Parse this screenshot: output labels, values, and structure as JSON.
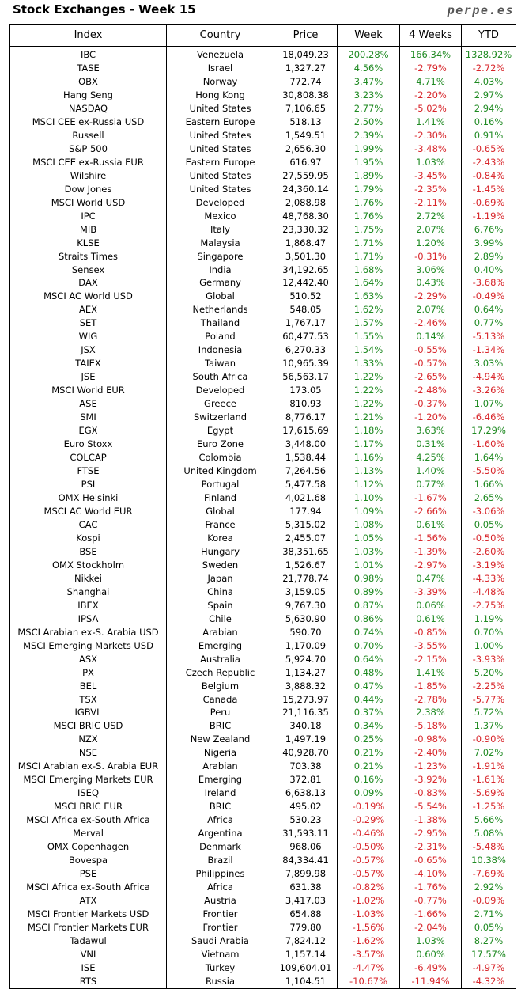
{
  "title": "Stock Exchanges - Week 15",
  "brand": "perpe.es",
  "colors": {
    "positive": "#1f8a22",
    "negative": "#d8262b"
  },
  "headers": [
    "Index",
    "Country",
    "Price",
    "Week",
    "4 Weeks",
    "YTD"
  ],
  "rows": [
    [
      "IBC",
      "Venezuela",
      "18,049.23",
      "200.28%",
      "166.34%",
      "1328.92%"
    ],
    [
      "TASE",
      "Israel",
      "1,327.27",
      "4.56%",
      "-2.79%",
      "-2.72%"
    ],
    [
      "OBX",
      "Norway",
      "772.74",
      "3.47%",
      "4.71%",
      "4.03%"
    ],
    [
      "Hang Seng",
      "Hong Kong",
      "30,808.38",
      "3.23%",
      "-2.20%",
      "2.97%"
    ],
    [
      "NASDAQ",
      "United States",
      "7,106.65",
      "2.77%",
      "-5.02%",
      "2.94%"
    ],
    [
      "MSCI CEE ex-Russia USD",
      "Eastern Europe",
      "518.13",
      "2.50%",
      "1.41%",
      "0.16%"
    ],
    [
      "Russell",
      "United States",
      "1,549.51",
      "2.39%",
      "-2.30%",
      "0.91%"
    ],
    [
      "S&P 500",
      "United States",
      "2,656.30",
      "1.99%",
      "-3.48%",
      "-0.65%"
    ],
    [
      "MSCI CEE ex-Russia EUR",
      "Eastern Europe",
      "616.97",
      "1.95%",
      "1.03%",
      "-2.43%"
    ],
    [
      "Wilshire",
      "United States",
      "27,559.95",
      "1.89%",
      "-3.45%",
      "-0.84%"
    ],
    [
      "Dow Jones",
      "United States",
      "24,360.14",
      "1.79%",
      "-2.35%",
      "-1.45%"
    ],
    [
      "MSCI World USD",
      "Developed",
      "2,088.98",
      "1.76%",
      "-2.11%",
      "-0.69%"
    ],
    [
      "IPC",
      "Mexico",
      "48,768.30",
      "1.76%",
      "2.72%",
      "-1.19%"
    ],
    [
      "MIB",
      "Italy",
      "23,330.32",
      "1.75%",
      "2.07%",
      "6.76%"
    ],
    [
      "KLSE",
      "Malaysia",
      "1,868.47",
      "1.71%",
      "1.20%",
      "3.99%"
    ],
    [
      "Straits Times",
      "Singapore",
      "3,501.30",
      "1.71%",
      "-0.31%",
      "2.89%"
    ],
    [
      "Sensex",
      "India",
      "34,192.65",
      "1.68%",
      "3.06%",
      "0.40%"
    ],
    [
      "DAX",
      "Germany",
      "12,442.40",
      "1.64%",
      "0.43%",
      "-3.68%"
    ],
    [
      "MSCI AC World USD",
      "Global",
      "510.52",
      "1.63%",
      "-2.29%",
      "-0.49%"
    ],
    [
      "AEX",
      "Netherlands",
      "548.05",
      "1.62%",
      "2.07%",
      "0.64%"
    ],
    [
      "SET",
      "Thailand",
      "1,767.17",
      "1.57%",
      "-2.46%",
      "0.77%"
    ],
    [
      "WIG",
      "Poland",
      "60,477.53",
      "1.55%",
      "0.14%",
      "-5.13%"
    ],
    [
      "JSX",
      "Indonesia",
      "6,270.33",
      "1.54%",
      "-0.55%",
      "-1.34%"
    ],
    [
      "TAIEX",
      "Taiwan",
      "10,965.39",
      "1.33%",
      "-0.57%",
      "3.03%"
    ],
    [
      "JSE",
      "South Africa",
      "56,563.17",
      "1.22%",
      "-2.65%",
      "-4.94%"
    ],
    [
      "MSCI World EUR",
      "Developed",
      "173.05",
      "1.22%",
      "-2.48%",
      "-3.26%"
    ],
    [
      "ASE",
      "Greece",
      "810.93",
      "1.22%",
      "-0.37%",
      "1.07%"
    ],
    [
      "SMI",
      "Switzerland",
      "8,776.17",
      "1.21%",
      "-1.20%",
      "-6.46%"
    ],
    [
      "EGX",
      "Egypt",
      "17,615.69",
      "1.18%",
      "3.63%",
      "17.29%"
    ],
    [
      "Euro Stoxx",
      "Euro Zone",
      "3,448.00",
      "1.17%",
      "0.31%",
      "-1.60%"
    ],
    [
      "COLCAP",
      "Colombia",
      "1,538.44",
      "1.16%",
      "4.25%",
      "1.64%"
    ],
    [
      "FTSE",
      "United Kingdom",
      "7,264.56",
      "1.13%",
      "1.40%",
      "-5.50%"
    ],
    [
      "PSI",
      "Portugal",
      "5,477.58",
      "1.12%",
      "0.77%",
      "1.66%"
    ],
    [
      "OMX Helsinki",
      "Finland",
      "4,021.68",
      "1.10%",
      "-1.67%",
      "2.65%"
    ],
    [
      "MSCI AC World EUR",
      "Global",
      "177.94",
      "1.09%",
      "-2.66%",
      "-3.06%"
    ],
    [
      "CAC",
      "France",
      "5,315.02",
      "1.08%",
      "0.61%",
      "0.05%"
    ],
    [
      "Kospi",
      "Korea",
      "2,455.07",
      "1.05%",
      "-1.56%",
      "-0.50%"
    ],
    [
      "BSE",
      "Hungary",
      "38,351.65",
      "1.03%",
      "-1.39%",
      "-2.60%"
    ],
    [
      "OMX Stockholm",
      "Sweden",
      "1,526.67",
      "1.01%",
      "-2.97%",
      "-3.19%"
    ],
    [
      "Nikkei",
      "Japan",
      "21,778.74",
      "0.98%",
      "0.47%",
      "-4.33%"
    ],
    [
      "Shanghai",
      "China",
      "3,159.05",
      "0.89%",
      "-3.39%",
      "-4.48%"
    ],
    [
      "IBEX",
      "Spain",
      "9,767.30",
      "0.87%",
      "0.06%",
      "-2.75%"
    ],
    [
      "IPSA",
      "Chile",
      "5,630.90",
      "0.86%",
      "0.61%",
      "1.19%"
    ],
    [
      "MSCI Arabian ex-S. Arabia USD",
      "Arabian",
      "590.70",
      "0.74%",
      "-0.85%",
      "0.70%"
    ],
    [
      "MSCI Emerging Markets USD",
      "Emerging",
      "1,170.09",
      "0.70%",
      "-3.55%",
      "1.00%"
    ],
    [
      "ASX",
      "Australia",
      "5,924.70",
      "0.64%",
      "-2.15%",
      "-3.93%"
    ],
    [
      "PX",
      "Czech Republic",
      "1,134.27",
      "0.48%",
      "1.41%",
      "5.20%"
    ],
    [
      "BEL",
      "Belgium",
      "3,888.32",
      "0.47%",
      "-1.85%",
      "-2.25%"
    ],
    [
      "TSX",
      "Canada",
      "15,273.97",
      "0.44%",
      "-2.78%",
      "-5.77%"
    ],
    [
      "IGBVL",
      "Peru",
      "21,116.35",
      "0.37%",
      "2.38%",
      "5.72%"
    ],
    [
      "MSCI BRIC USD",
      "BRIC",
      "340.18",
      "0.34%",
      "-5.18%",
      "1.37%"
    ],
    [
      "NZX",
      "New Zealand",
      "1,497.19",
      "0.25%",
      "-0.98%",
      "-0.90%"
    ],
    [
      "NSE",
      "Nigeria",
      "40,928.70",
      "0.21%",
      "-2.40%",
      "7.02%"
    ],
    [
      "MSCI Arabian ex-S. Arabia EUR",
      "Arabian",
      "703.38",
      "0.21%",
      "-1.23%",
      "-1.91%"
    ],
    [
      "MSCI Emerging Markets EUR",
      "Emerging",
      "372.81",
      "0.16%",
      "-3.92%",
      "-1.61%"
    ],
    [
      "ISEQ",
      "Ireland",
      "6,638.13",
      "0.09%",
      "-0.83%",
      "-5.69%"
    ],
    [
      "MSCI BRIC EUR",
      "BRIC",
      "495.02",
      "-0.19%",
      "-5.54%",
      "-1.25%"
    ],
    [
      "MSCI Africa ex-South Africa",
      "Africa",
      "530.23",
      "-0.29%",
      "-1.38%",
      "5.66%"
    ],
    [
      "Merval",
      "Argentina",
      "31,593.11",
      "-0.46%",
      "-2.95%",
      "5.08%"
    ],
    [
      "OMX Copenhagen",
      "Denmark",
      "968.06",
      "-0.50%",
      "-2.31%",
      "-5.48%"
    ],
    [
      "Bovespa",
      "Brazil",
      "84,334.41",
      "-0.57%",
      "-0.65%",
      "10.38%"
    ],
    [
      "PSE",
      "Philippines",
      "7,899.98",
      "-0.57%",
      "-4.10%",
      "-7.69%"
    ],
    [
      "MSCI Africa ex-South Africa",
      "Africa",
      "631.38",
      "-0.82%",
      "-1.76%",
      "2.92%"
    ],
    [
      "ATX",
      "Austria",
      "3,417.03",
      "-1.02%",
      "-0.77%",
      "-0.09%"
    ],
    [
      "MSCI Frontier Markets USD",
      "Frontier",
      "654.88",
      "-1.03%",
      "-1.66%",
      "2.71%"
    ],
    [
      "MSCI Frontier Markets EUR",
      "Frontier",
      "779.80",
      "-1.56%",
      "-2.04%",
      "0.05%"
    ],
    [
      "Tadawul",
      "Saudi Arabia",
      "7,824.12",
      "-1.62%",
      "1.03%",
      "8.27%"
    ],
    [
      "VNI",
      "Vietnam",
      "1,157.14",
      "-3.57%",
      "0.60%",
      "17.57%"
    ],
    [
      "ISE",
      "Turkey",
      "109,604.01",
      "-4.47%",
      "-6.49%",
      "-4.97%"
    ],
    [
      "RTS",
      "Russia",
      "1,104.51",
      "-10.67%",
      "-11.94%",
      "-4.32%"
    ]
  ]
}
